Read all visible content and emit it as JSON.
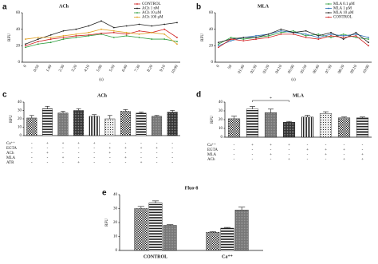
{
  "chart_data": [
    {
      "type": "line",
      "panel_label": "a",
      "title": "ACh",
      "ylabel": "RFU",
      "xlabel": "(s)",
      "categories": [
        "0",
        "0:50",
        "1:40",
        "2:30",
        "3:20",
        "4:10",
        "5:00",
        "5:50",
        "6:40",
        "7:30",
        "8:20",
        "9:10",
        "10:00"
      ],
      "series": [
        {
          "name": "CONTROL",
          "color": "#d02020",
          "values": [
            20,
            25,
            28,
            30,
            32,
            33,
            35,
            36,
            34,
            38,
            36,
            40,
            30
          ]
        },
        {
          "name": "ACh 1 nM",
          "color": "#222222",
          "values": [
            22,
            28,
            33,
            38,
            40,
            44,
            50,
            42,
            44,
            46,
            44,
            46,
            48
          ]
        },
        {
          "name": "ACh 10 μM",
          "color": "#2e9e3e",
          "values": [
            18,
            22,
            24,
            28,
            30,
            32,
            34,
            30,
            32,
            30,
            28,
            28,
            25
          ]
        },
        {
          "name": "ACh 100 μM",
          "color": "#e0a020",
          "values": [
            28,
            30,
            30,
            32,
            34,
            36,
            40,
            38,
            36,
            34,
            36,
            34,
            22
          ]
        }
      ],
      "ylim": [
        0,
        60
      ],
      "yticks": [
        0,
        20,
        40,
        60
      ]
    },
    {
      "type": "line",
      "panel_label": "b",
      "title": "MLA",
      "ylabel": "RFU",
      "xlabel": "(s)",
      "categories": [
        "0",
        "50",
        "01:40",
        "02:30",
        "03:20",
        "04:10",
        "05:00",
        "05:50",
        "06:40",
        "07:30",
        "08:20",
        "09:10",
        "10:00"
      ],
      "series": [
        {
          "name": "MLA 0.1 μM",
          "color": "#2e9e3e",
          "values": [
            22,
            30,
            28,
            30,
            32,
            36,
            38,
            32,
            34,
            30,
            34,
            30,
            28
          ]
        },
        {
          "name": "MLA 1 μM",
          "color": "#2a6fb5",
          "values": [
            20,
            26,
            30,
            32,
            34,
            38,
            36,
            34,
            30,
            34,
            32,
            34,
            30
          ]
        },
        {
          "name": "MLA 10 μM",
          "color": "#222222",
          "values": [
            24,
            28,
            30,
            30,
            34,
            40,
            36,
            38,
            32,
            36,
            28,
            36,
            24
          ]
        },
        {
          "name": "CONTROL",
          "color": "#d02020",
          "values": [
            18,
            28,
            26,
            28,
            30,
            34,
            34,
            30,
            28,
            32,
            30,
            32,
            20
          ]
        }
      ],
      "ylim": [
        0,
        60
      ],
      "yticks": [
        0,
        20,
        40,
        60
      ]
    },
    {
      "type": "bar",
      "panel_label": "c",
      "title": "ACh",
      "ylabel": "RFU",
      "values": [
        21,
        32,
        27,
        30,
        23,
        20,
        29,
        27,
        23,
        28
      ],
      "errors": [
        3,
        3,
        2,
        2,
        2,
        4,
        2,
        1,
        1,
        2
      ],
      "conditions": [
        {
          "name": "Ca⁺⁺",
          "signs": [
            "-",
            "+",
            "+",
            "+",
            "+",
            "-",
            "-",
            "-",
            "-",
            "-"
          ]
        },
        {
          "name": "EGTA",
          "signs": [
            "-",
            "-",
            "-",
            "-",
            "-",
            "+",
            "+",
            "+",
            "+",
            "-"
          ]
        },
        {
          "name": "ACh",
          "signs": [
            "-",
            "+",
            "-",
            "-",
            "-",
            "+",
            "-",
            "-",
            "-",
            "-"
          ]
        },
        {
          "name": "MLA",
          "signs": [
            "-",
            "-",
            "+",
            "-",
            "-",
            "-",
            "+",
            "-",
            "-",
            "-"
          ]
        },
        {
          "name": "ATR",
          "signs": [
            "-",
            "-",
            "-",
            "+",
            "-",
            "-",
            "-",
            "+",
            "-",
            "-"
          ]
        }
      ],
      "ylim": [
        0,
        40
      ],
      "yticks": [
        0,
        10,
        20,
        30,
        40
      ]
    },
    {
      "type": "bar",
      "panel_label": "d",
      "title": "MLA",
      "ylabel": "RFU",
      "annotation": "*",
      "values": [
        21,
        32,
        28,
        17,
        23,
        27,
        22,
        22
      ],
      "errors": [
        3,
        3,
        4,
        1,
        2,
        2,
        1,
        1
      ],
      "conditions": [
        {
          "name": "Ca⁺⁺",
          "signs": [
            "-",
            "+",
            "+",
            "+",
            "-",
            "-",
            "-",
            "-"
          ]
        },
        {
          "name": "EGTA",
          "signs": [
            "-",
            "-",
            "-",
            "-",
            "+",
            "+",
            "+",
            "-"
          ]
        },
        {
          "name": "MLA",
          "signs": [
            "-",
            "-",
            "+",
            "-",
            "-",
            "+",
            "-",
            "+"
          ]
        },
        {
          "name": "ACh",
          "signs": [
            "-",
            "-",
            "-",
            "+",
            "-",
            "-",
            "+",
            "+"
          ]
        }
      ],
      "ylim": [
        0,
        40
      ],
      "yticks": [
        0,
        10,
        20,
        30,
        40
      ]
    },
    {
      "type": "bar",
      "panel_label": "e",
      "title": "Fluo-8",
      "ylabel": "RFU",
      "categories": [
        "CONTROL",
        "Ca⁺⁺"
      ],
      "series": [
        {
          "values": [
            30,
            13
          ],
          "errors": [
            1.5,
            0.5
          ]
        },
        {
          "values": [
            34,
            16
          ],
          "errors": [
            1.5,
            0.5
          ]
        },
        {
          "values": [
            18,
            29
          ],
          "errors": [
            0.5,
            2
          ]
        }
      ],
      "ylim": [
        0,
        40
      ],
      "yticks": [
        0,
        10,
        20,
        30,
        40
      ]
    }
  ]
}
